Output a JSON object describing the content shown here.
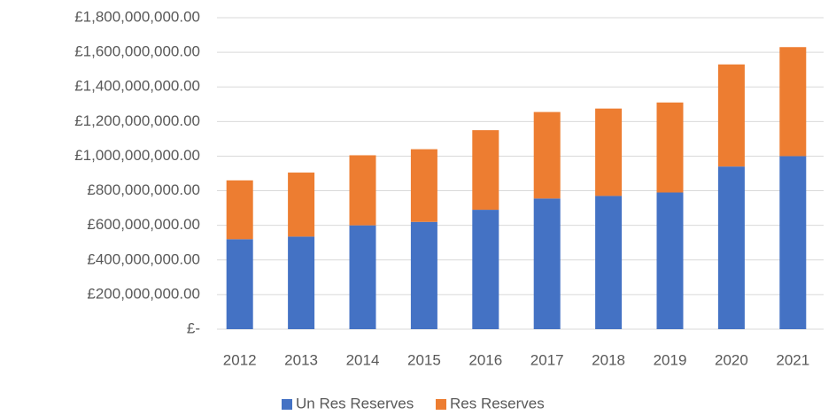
{
  "chart_data": {
    "type": "stacked_bar",
    "categories": [
      "2012",
      "2013",
      "2014",
      "2015",
      "2016",
      "2017",
      "2018",
      "2019",
      "2020",
      "2021"
    ],
    "series": [
      {
        "name": "Un Res Reserves",
        "color": "#4472c4",
        "values": [
          520000000,
          535000000,
          600000000,
          620000000,
          690000000,
          755000000,
          770000000,
          790000000,
          940000000,
          1000000000
        ]
      },
      {
        "name": "Res Reserves",
        "color": "#ed7d31",
        "values": [
          340000000,
          370000000,
          405000000,
          420000000,
          460000000,
          500000000,
          505000000,
          520000000,
          590000000,
          630000000
        ]
      }
    ],
    "ylim": [
      0,
      1800000000
    ],
    "yticks": [
      {
        "value": 0,
        "label": "£-"
      },
      {
        "value": 200000000,
        "label": "£200,000,000.00"
      },
      {
        "value": 400000000,
        "label": "£400,000,000.00"
      },
      {
        "value": 600000000,
        "label": "£600,000,000.00"
      },
      {
        "value": 800000000,
        "label": "£800,000,000.00"
      },
      {
        "value": 1000000000,
        "label": "£1,000,000,000.00"
      },
      {
        "value": 1200000000,
        "label": "£1,200,000,000.00"
      },
      {
        "value": 1400000000,
        "label": "£1,400,000,000.00"
      },
      {
        "value": 1600000000,
        "label": "£1,600,000,000.00"
      },
      {
        "value": 1800000000,
        "label": "£1,800,000,000.00"
      }
    ],
    "grid": true,
    "legend": "bottom"
  }
}
